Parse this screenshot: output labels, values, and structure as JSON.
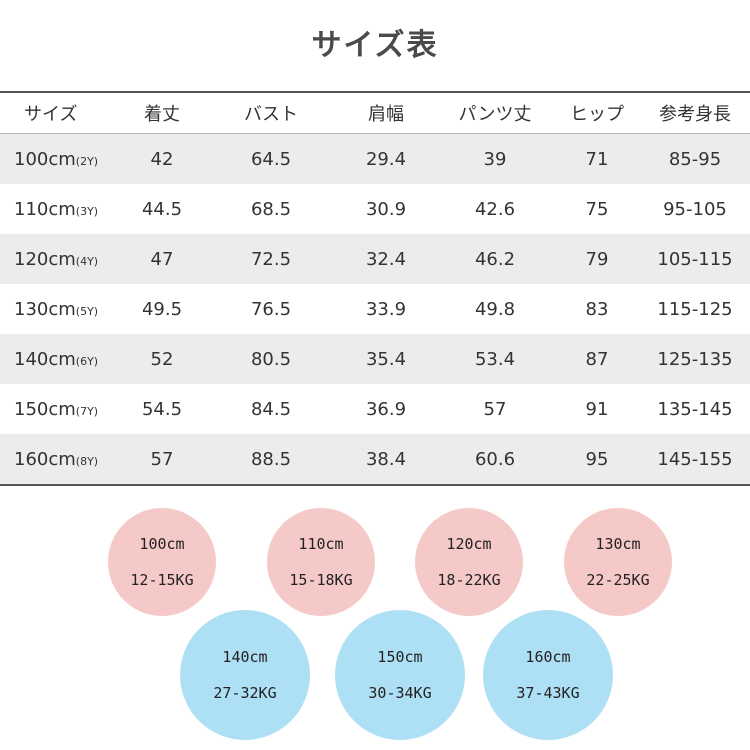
{
  "title": "サイズ表",
  "table": {
    "headers": [
      "サイズ",
      "着丈",
      "バスト",
      "肩幅",
      "パンツ丈",
      "ヒップ",
      "参考身長"
    ],
    "rows": [
      {
        "size": "100cm",
        "age": "(2Y)",
        "values": [
          "42",
          "64.5",
          "29.4",
          "39",
          "71",
          "85-95"
        ]
      },
      {
        "size": "110cm",
        "age": "(3Y)",
        "values": [
          "44.5",
          "68.5",
          "30.9",
          "42.6",
          "75",
          "95-105"
        ]
      },
      {
        "size": "120cm",
        "age": "(4Y)",
        "values": [
          "47",
          "72.5",
          "32.4",
          "46.2",
          "79",
          "105-115"
        ]
      },
      {
        "size": "130cm",
        "age": "(5Y)",
        "values": [
          "49.5",
          "76.5",
          "33.9",
          "49.8",
          "83",
          "115-125"
        ]
      },
      {
        "size": "140cm",
        "age": "(6Y)",
        "values": [
          "52",
          "80.5",
          "35.4",
          "53.4",
          "87",
          "125-135"
        ]
      },
      {
        "size": "150cm",
        "age": "(7Y)",
        "values": [
          "54.5",
          "84.5",
          "36.9",
          "57",
          "91",
          "135-145"
        ]
      },
      {
        "size": "160cm",
        "age": "(8Y)",
        "values": [
          "57",
          "88.5",
          "38.4",
          "60.6",
          "95",
          "145-155"
        ]
      }
    ]
  },
  "weights": [
    {
      "size": "100cm",
      "weight": "12-15KG"
    },
    {
      "size": "110cm",
      "weight": "15-18KG"
    },
    {
      "size": "120cm",
      "weight": "18-22KG"
    },
    {
      "size": "130cm",
      "weight": "22-25KG"
    },
    {
      "size": "140cm",
      "weight": "27-32KG"
    },
    {
      "size": "150cm",
      "weight": "30-34KG"
    },
    {
      "size": "160cm",
      "weight": "37-43KG"
    }
  ],
  "colors": {
    "row_shade": "#ececec",
    "circle_pink": "#f6c9c9",
    "circle_blue": "#aee0f5"
  }
}
